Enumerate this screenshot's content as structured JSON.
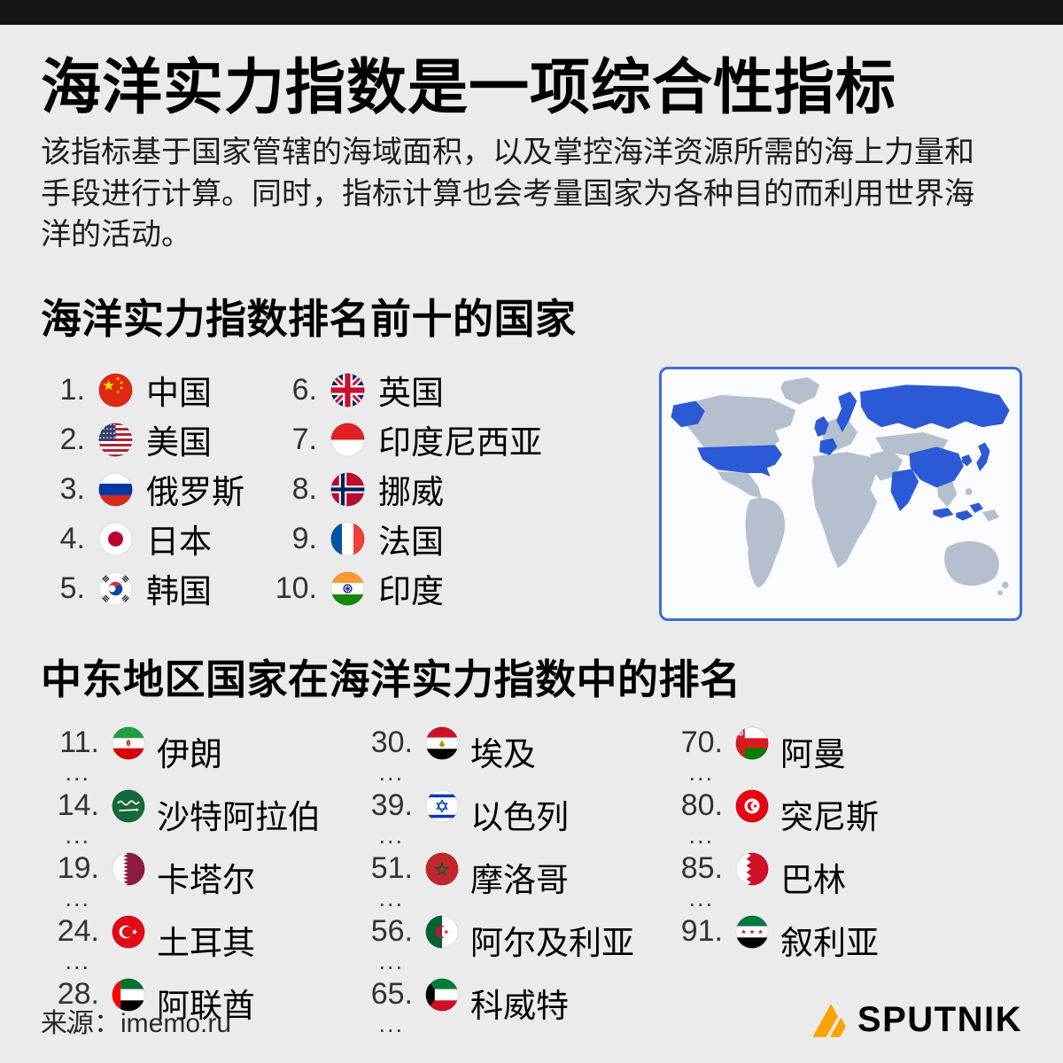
{
  "header": {
    "title": "海洋实力指数是一项综合性指标",
    "description": "该指标基于国家管辖的海域面积，以及掌控海洋资源所需的海上力量和手段进行计算。同时，指标计算也会考量国家为各种目的而利用世界海洋的活动。"
  },
  "top10": {
    "heading": "海洋实力指数排名前十的国家",
    "items": [
      {
        "rank": "1.",
        "name": "中国",
        "flag": "china"
      },
      {
        "rank": "2.",
        "name": "美国",
        "flag": "usa"
      },
      {
        "rank": "3.",
        "name": "俄罗斯",
        "flag": "russia"
      },
      {
        "rank": "4.",
        "name": "日本",
        "flag": "japan"
      },
      {
        "rank": "5.",
        "name": "韩国",
        "flag": "south-korea"
      },
      {
        "rank": "6.",
        "name": "英国",
        "flag": "uk"
      },
      {
        "rank": "7.",
        "name": "印度尼西亚",
        "flag": "indonesia"
      },
      {
        "rank": "8.",
        "name": "挪威",
        "flag": "norway"
      },
      {
        "rank": "9.",
        "name": "法国",
        "flag": "france"
      },
      {
        "rank": "10.",
        "name": "印度",
        "flag": "india"
      }
    ]
  },
  "map": {
    "highlight_color": "#2c59d6",
    "land_color": "#b5bfce",
    "border_color": "#3a6fd8",
    "panel_background": "#fafcff"
  },
  "middle_east": {
    "heading": "中东地区国家在海洋实力指数中的排名",
    "ellipsis": "...",
    "items": [
      {
        "rank": "11.",
        "name": "伊朗",
        "flag": "iran",
        "dots": true
      },
      {
        "rank": "14.",
        "name": "沙特阿拉伯",
        "flag": "saudi-arabia",
        "dots": true
      },
      {
        "rank": "19.",
        "name": "卡塔尔",
        "flag": "qatar",
        "dots": true
      },
      {
        "rank": "24.",
        "name": "土耳其",
        "flag": "turkey",
        "dots": true
      },
      {
        "rank": "28.",
        "name": "阿联酋",
        "flag": "uae",
        "dots": true
      },
      {
        "rank": "30.",
        "name": "埃及",
        "flag": "egypt",
        "dots": true
      },
      {
        "rank": "39.",
        "name": "以色列",
        "flag": "israel",
        "dots": true
      },
      {
        "rank": "51.",
        "name": "摩洛哥",
        "flag": "morocco",
        "dots": true
      },
      {
        "rank": "56.",
        "name": "阿尔及利亚",
        "flag": "algeria",
        "dots": true
      },
      {
        "rank": "65.",
        "name": "科威特",
        "flag": "kuwait",
        "dots": true
      },
      {
        "rank": "70.",
        "name": "阿曼",
        "flag": "oman",
        "dots": true
      },
      {
        "rank": "80.",
        "name": "突尼斯",
        "flag": "tunisia",
        "dots": true
      },
      {
        "rank": "85.",
        "name": "巴林",
        "flag": "bahrain",
        "dots": true
      },
      {
        "rank": "91.",
        "name": "叙利亚",
        "flag": "syria",
        "dots": false
      }
    ]
  },
  "footer": {
    "source": "来源：imemo.ru",
    "logo_text": "SPUTNIK",
    "logo_color": "#f8a300"
  }
}
